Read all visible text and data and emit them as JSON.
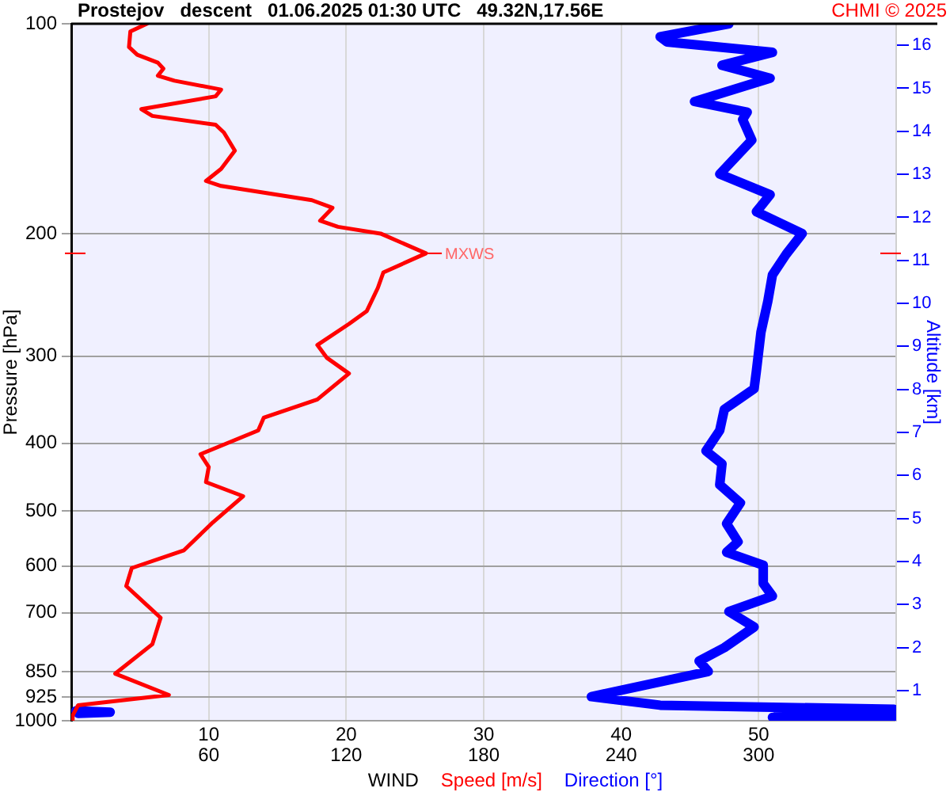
{
  "chart_data": {
    "type": "line",
    "orientation": "horizontal",
    "title": "Prostejov   descent   01.06.2025 01:30 UTC   49.32N,17.56E",
    "xlabel": "WIND",
    "ylabel": "Pressure [hPa]",
    "y2label": "Altitude [km]",
    "annotations": [
      "CHMI © 2025",
      {
        "text": "MXWS",
        "x": 25.8,
        "y": 213.5
      }
    ],
    "log": "y",
    "grid": true,
    "legend": "bottom",
    "xlim": [
      0,
      60
    ],
    "xticks": [
      10,
      20,
      30,
      40,
      50
    ],
    "x2lim": [
      0,
      360
    ],
    "x2ticks": [
      60,
      120,
      180,
      240,
      300
    ],
    "ylim": [
      1000,
      100
    ],
    "yticks": [
      100,
      200,
      300,
      400,
      500,
      600,
      700,
      850,
      925,
      1000
    ],
    "y2lim": [
      0.3,
      16.5
    ],
    "y2ticks": [
      1,
      2,
      3,
      4,
      5,
      6,
      7,
      8,
      9,
      10,
      11,
      12,
      13,
      14,
      15,
      16
    ],
    "series": [
      {
        "name": "Speed [m/s]",
        "color": "#ff0000",
        "x": [
          100,
          102.6,
          108,
          110.8,
          113.7,
          116,
          118.7,
          120.7,
          124.3,
          127.1,
          132.6,
          135.6,
          139.6,
          143.2,
          152.1,
          161.5,
          168.1,
          170.9,
          179.1,
          183.7,
          191.7,
          195.6,
          200,
          213.5,
          227.4,
          239.3,
          258.3,
          269.6,
          289,
          301.6,
          317.6,
          346,
          367.5,
          383.3,
          414.6,
          432.5,
          454.6,
          476.3,
          521.5,
          569.4,
          603.9,
          641,
          711.7,
          776.6,
          856,
          918.4,
          950,
          983,
          1000
        ],
        "values": [
          5.5,
          4.3,
          4.2,
          4.8,
          6.3,
          6.7,
          6.3,
          7.5,
          10.9,
          10.5,
          5.1,
          5.9,
          10.5,
          11.1,
          11.9,
          10.9,
          9.8,
          10.9,
          17.5,
          19.0,
          18.1,
          19.4,
          22.5,
          25.8,
          22.7,
          22.3,
          21.5,
          20.2,
          17.9,
          18.6,
          20.2,
          17.9,
          14.0,
          13.6,
          9.4,
          10.0,
          9.8,
          12.5,
          10.2,
          8.2,
          4.4,
          4.0,
          6.5,
          5.9,
          3.2,
          7.1,
          0.5,
          0.1,
          0.1
        ]
      },
      {
        "name": "Direction [°]",
        "color": "#0000ff",
        "axis": "x2",
        "x": [
          100,
          104.4,
          106.2,
          109.9,
          114.7,
          119.7,
          129.3,
          133.9,
          137.2,
          146.9,
          164.3,
          175.9,
          186.1,
          200,
          214.1,
          229.3,
          250,
          277,
          314.9,
          334,
          357.5,
          383.3,
          410.1,
          428,
          458.6,
          486.9,
          521.5,
          553.8,
          573.2,
          598.1,
          635.4,
          662.5,
          697.3,
          733.8,
          785.5,
          820.9,
          849.8,
          923.6,
          950,
          963,
          966,
          968,
          972,
          976,
          978,
          980,
          983,
          986,
          989
        ],
        "values": [
          287,
          257,
          260,
          306,
          284,
          305,
          272,
          295,
          293,
          297,
          283,
          305,
          299,
          319,
          312,
          306,
          304,
          301,
          299,
          298,
          285,
          283,
          277,
          284,
          283,
          292,
          286,
          291,
          286,
          302,
          302,
          306,
          287,
          298,
          285,
          274,
          278,
          227,
          257,
          359,
          null,
          2,
          17,
          3,
          null,
          359,
          308,
          359,
          306
        ]
      }
    ]
  }
}
